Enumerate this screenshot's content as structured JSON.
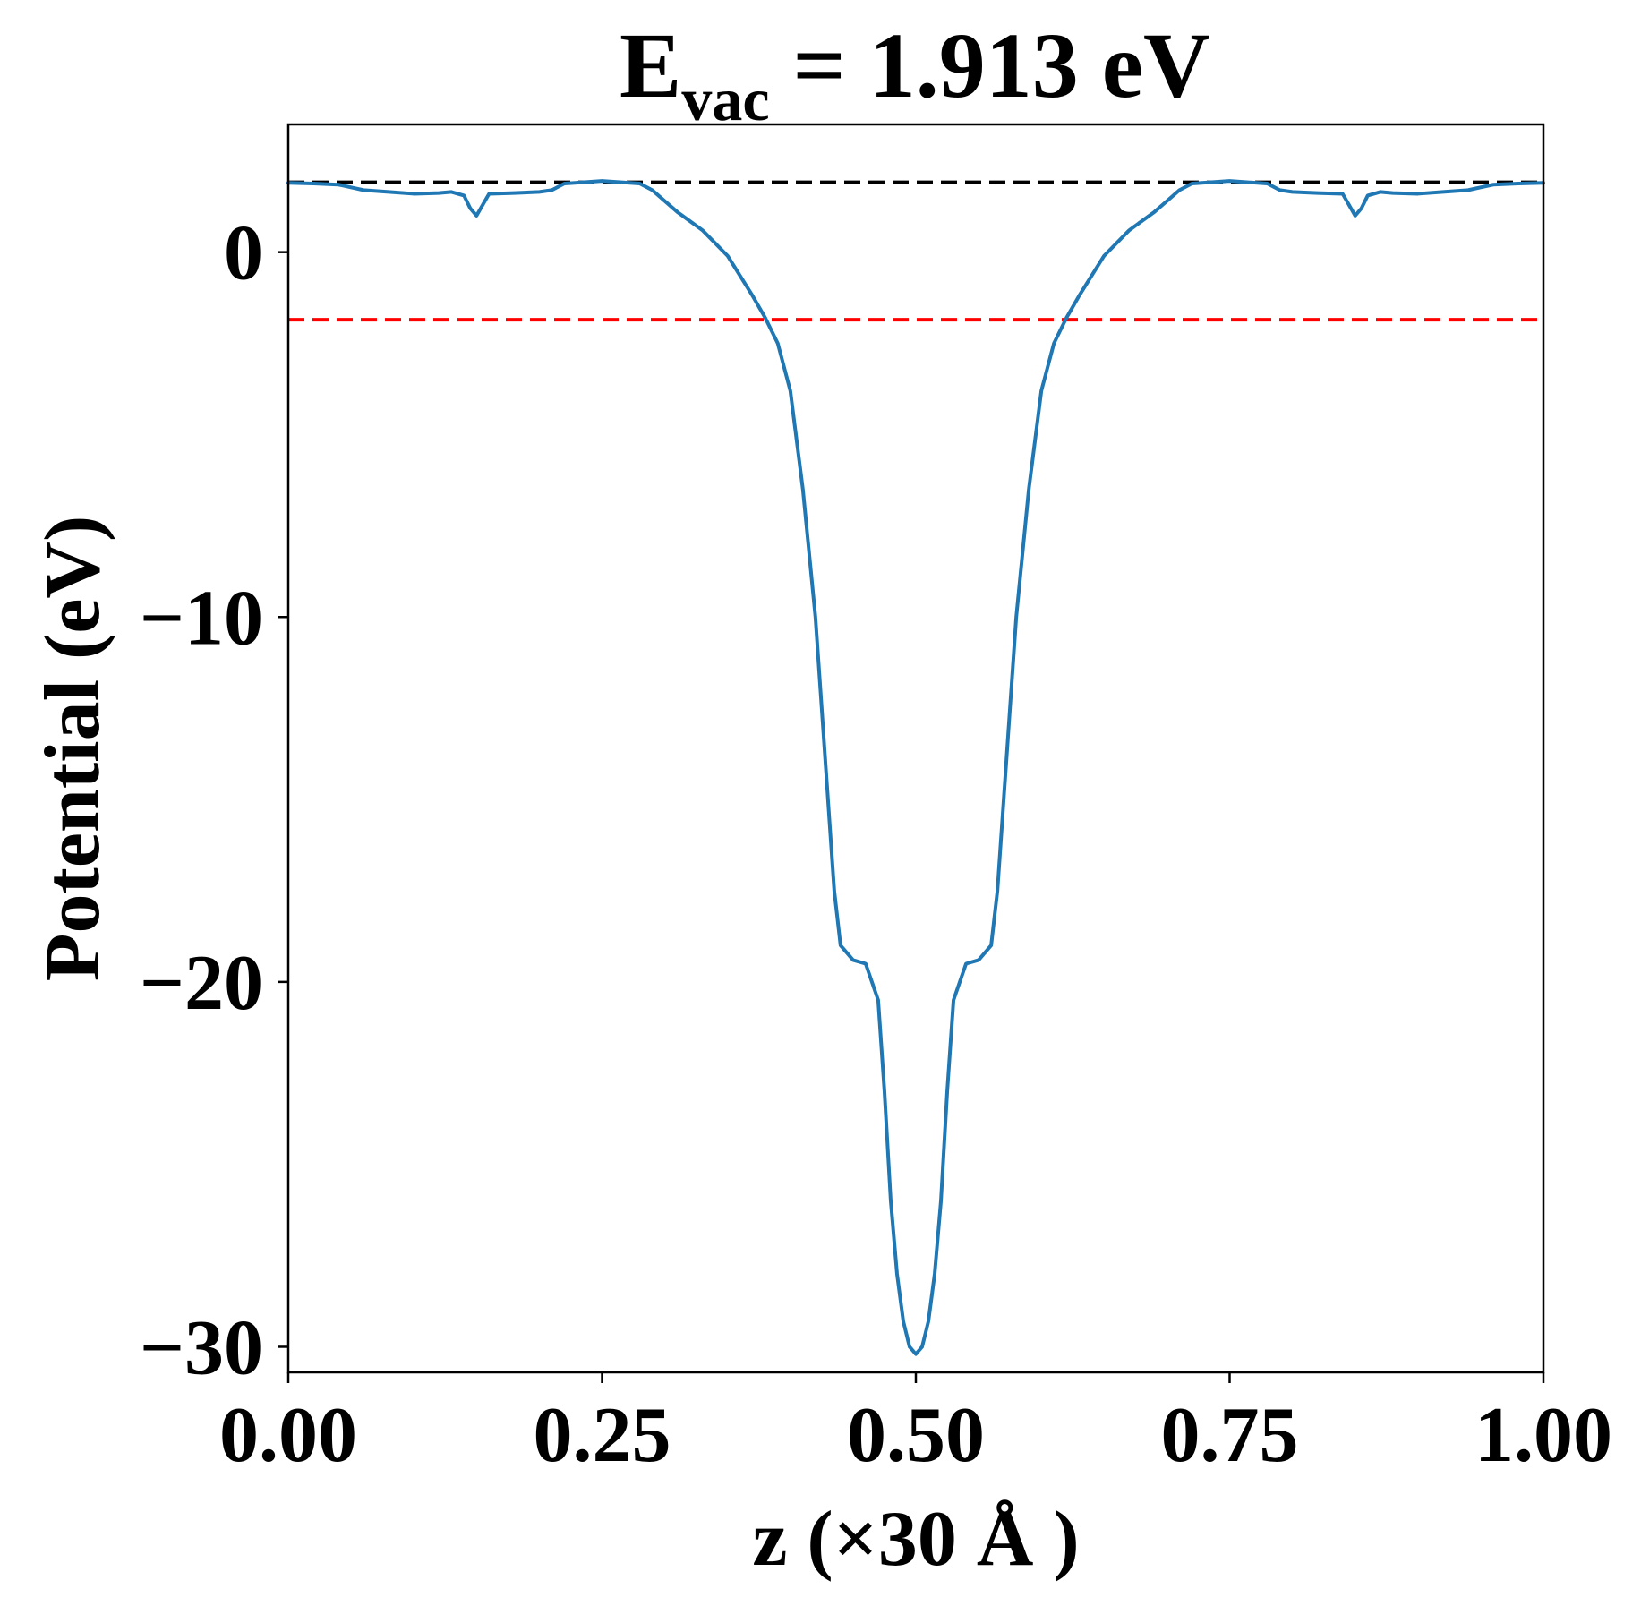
{
  "chart_data": {
    "type": "line",
    "title": {
      "main": "E",
      "subscript": "vac",
      "rest": " = 1.913 eV"
    },
    "xlabel": "z (×30 Å )",
    "ylabel": "Potential (eV)",
    "xlim": [
      0.0,
      1.0
    ],
    "ylim": [
      -30.7,
      3.5
    ],
    "x_ticks": [
      {
        "value": 0.0,
        "label": "0.00"
      },
      {
        "value": 0.25,
        "label": "0.25"
      },
      {
        "value": 0.5,
        "label": "0.50"
      },
      {
        "value": 0.75,
        "label": "0.75"
      },
      {
        "value": 1.0,
        "label": "1.00"
      }
    ],
    "y_ticks": [
      {
        "value": 0,
        "label": "0"
      },
      {
        "value": -10,
        "label": "−10"
      },
      {
        "value": -20,
        "label": "−20"
      },
      {
        "value": -30,
        "label": "−30"
      }
    ],
    "grid": false,
    "reference_lines": [
      {
        "y": 1.913,
        "color": "#000000",
        "style": "dashed"
      },
      {
        "y": -1.85,
        "color": "#ff0000",
        "style": "dashed"
      }
    ],
    "series": [
      {
        "color": "#1f77b4",
        "x": [
          0.0,
          0.02,
          0.04,
          0.06,
          0.08,
          0.1,
          0.12,
          0.13,
          0.14,
          0.145,
          0.15,
          0.155,
          0.16,
          0.18,
          0.2,
          0.21,
          0.22,
          0.25,
          0.28,
          0.29,
          0.3,
          0.31,
          0.33,
          0.35,
          0.37,
          0.38,
          0.39,
          0.4,
          0.41,
          0.42,
          0.425,
          0.43,
          0.435,
          0.44,
          0.45,
          0.46,
          0.47,
          0.475,
          0.48,
          0.485,
          0.49,
          0.495,
          0.5,
          0.505,
          0.51,
          0.515,
          0.52,
          0.525,
          0.53,
          0.54,
          0.55,
          0.56,
          0.565,
          0.57,
          0.575,
          0.58,
          0.59,
          0.6,
          0.61,
          0.62,
          0.63,
          0.65,
          0.67,
          0.69,
          0.7,
          0.71,
          0.72,
          0.75,
          0.78,
          0.79,
          0.8,
          0.82,
          0.84,
          0.845,
          0.85,
          0.855,
          0.86,
          0.87,
          0.88,
          0.9,
          0.92,
          0.94,
          0.96,
          0.98,
          1.0
        ],
        "y": [
          1.9,
          1.88,
          1.85,
          1.7,
          1.65,
          1.6,
          1.62,
          1.65,
          1.55,
          1.2,
          1.0,
          1.3,
          1.6,
          1.62,
          1.65,
          1.7,
          1.88,
          1.95,
          1.88,
          1.7,
          1.4,
          1.1,
          0.6,
          -0.1,
          -1.2,
          -1.8,
          -2.5,
          -3.8,
          -6.5,
          -10.0,
          -12.5,
          -15.0,
          -17.5,
          -19.0,
          -19.4,
          -19.5,
          -20.5,
          -23.0,
          -26.0,
          -28.0,
          -29.3,
          -30.0,
          -30.2,
          -30.0,
          -29.3,
          -28.0,
          -26.0,
          -23.0,
          -20.5,
          -19.5,
          -19.4,
          -19.0,
          -17.5,
          -15.0,
          -12.5,
          -10.0,
          -6.5,
          -3.8,
          -2.5,
          -1.8,
          -1.2,
          -0.1,
          0.6,
          1.1,
          1.4,
          1.7,
          1.88,
          1.95,
          1.88,
          1.7,
          1.65,
          1.62,
          1.6,
          1.3,
          1.0,
          1.2,
          1.55,
          1.65,
          1.62,
          1.6,
          1.65,
          1.7,
          1.85,
          1.88,
          1.9
        ]
      }
    ]
  }
}
